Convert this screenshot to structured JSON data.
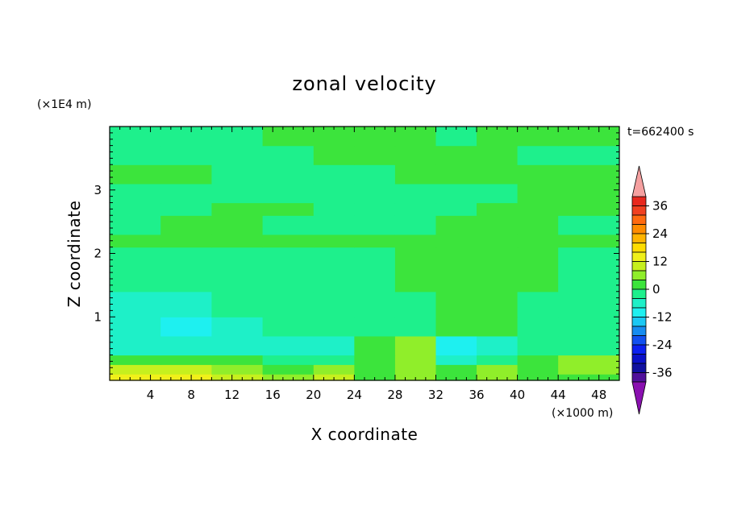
{
  "chart_data": {
    "type": "heatmap",
    "title": "zonal velocity",
    "xlabel": "X coordinate",
    "ylabel": "Z coordinate",
    "x_unit": "(×1000 m)",
    "y_unit": "(×1E4 m)",
    "time_label": "t=662400 s",
    "xlim": [
      0,
      50
    ],
    "ylim": [
      0,
      4
    ],
    "x_ticks": [
      4,
      8,
      12,
      16,
      20,
      24,
      28,
      32,
      36,
      40,
      44,
      48
    ],
    "y_ticks": [
      1,
      2,
      3
    ],
    "colorbar": {
      "ticks": [
        36,
        24,
        12,
        0,
        -12,
        -24,
        -36
      ],
      "levels": [
        {
          "from": 36,
          "to": 40,
          "color": "#e8281e"
        },
        {
          "from": 32,
          "to": 36,
          "color": "#f04020"
        },
        {
          "from": 28,
          "to": 32,
          "color": "#ff6a10"
        },
        {
          "from": 24,
          "to": 28,
          "color": "#ff8c00"
        },
        {
          "from": 20,
          "to": 24,
          "color": "#ffb400"
        },
        {
          "from": 16,
          "to": 20,
          "color": "#ffdc00"
        },
        {
          "from": 12,
          "to": 16,
          "color": "#f0f01a"
        },
        {
          "from": 8,
          "to": 12,
          "color": "#c6f01e"
        },
        {
          "from": 4,
          "to": 8,
          "color": "#90ee2a"
        },
        {
          "from": 0,
          "to": 4,
          "color": "#3ce43c"
        },
        {
          "from": -4,
          "to": 0,
          "color": "#1ef08c"
        },
        {
          "from": -8,
          "to": -4,
          "color": "#1ef0c8"
        },
        {
          "from": -12,
          "to": -8,
          "color": "#1ef0f0"
        },
        {
          "from": -16,
          "to": -12,
          "color": "#1ac8f4"
        },
        {
          "from": -20,
          "to": -16,
          "color": "#168cf0"
        },
        {
          "from": -24,
          "to": -20,
          "color": "#1250f0"
        },
        {
          "from": -28,
          "to": -24,
          "color": "#0c20f0"
        },
        {
          "from": -32,
          "to": -28,
          "color": "#0a10c8"
        },
        {
          "from": -36,
          "to": -32,
          "color": "#1010a0"
        },
        {
          "from": -40,
          "to": -36,
          "color": "#50109a"
        }
      ],
      "over_color": "#f5a0a0",
      "under_color": "#8a10b0"
    },
    "field_rows": [
      {
        "z": [
          0.0,
          0.1
        ],
        "x": [
          0,
          5,
          10,
          15,
          20,
          24,
          28,
          32,
          36,
          40,
          44,
          50
        ],
        "v": [
          13,
          14,
          10,
          6,
          9,
          2,
          5,
          3,
          7,
          2,
          3,
          4
        ]
      },
      {
        "z": [
          0.1,
          0.25
        ],
        "x": [
          0,
          5,
          10,
          15,
          20,
          24,
          28,
          32,
          36,
          40,
          44,
          50
        ],
        "v": [
          8,
          9,
          5,
          2,
          6,
          1,
          7,
          1,
          5,
          2,
          4,
          3
        ]
      },
      {
        "z": [
          0.25,
          0.4
        ],
        "x": [
          0,
          5,
          10,
          15,
          20,
          24,
          28,
          32,
          36,
          40,
          44,
          50
        ],
        "v": [
          2,
          1,
          0,
          -2,
          -1,
          3,
          6,
          -6,
          -2,
          1,
          5,
          1
        ]
      },
      {
        "z": [
          0.4,
          0.7
        ],
        "x": [
          0,
          5,
          10,
          15,
          20,
          24,
          28,
          32,
          36,
          40,
          44,
          50
        ],
        "v": [
          -6,
          -8,
          -5,
          -7,
          -5,
          2,
          5,
          -9,
          -5,
          -2,
          -1,
          -5
        ]
      },
      {
        "z": [
          0.7,
          1.0
        ],
        "x": [
          0,
          5,
          10,
          15,
          20,
          24,
          28,
          32,
          36,
          40,
          44,
          50
        ],
        "v": [
          -7,
          -10,
          -8,
          -3,
          -2,
          -1,
          -1,
          1,
          2,
          -2,
          -4,
          -7
        ]
      },
      {
        "z": [
          1.0,
          1.4
        ],
        "x": [
          0,
          5,
          10,
          15,
          20,
          24,
          28,
          32,
          36,
          40,
          44,
          50
        ],
        "v": [
          -5,
          -6,
          -4,
          -2,
          -1,
          -1,
          -2,
          2,
          2,
          -1,
          -2,
          -3
        ]
      },
      {
        "z": [
          1.4,
          2.1
        ],
        "x": [
          0,
          5,
          10,
          15,
          20,
          24,
          28,
          32,
          36,
          40,
          44,
          50
        ],
        "v": [
          -2,
          -2,
          -2,
          -2,
          -2,
          -2,
          1,
          2,
          2,
          1,
          -1,
          -1
        ]
      },
      {
        "z": [
          2.1,
          2.3
        ],
        "x": [
          0,
          5,
          10,
          15,
          20,
          24,
          28,
          32,
          36,
          40,
          44,
          50
        ],
        "v": [
          2,
          2,
          2,
          2,
          2,
          2,
          2,
          2,
          2,
          2,
          2,
          2
        ]
      },
      {
        "z": [
          2.3,
          2.6
        ],
        "x": [
          0,
          5,
          10,
          15,
          20,
          24,
          28,
          32,
          36,
          40,
          44,
          50
        ],
        "v": [
          -1,
          1,
          1,
          -1,
          -1,
          -1,
          -1,
          1,
          1,
          1,
          -1,
          -1
        ]
      },
      {
        "z": [
          2.6,
          2.8
        ],
        "x": [
          0,
          5,
          10,
          15,
          20,
          24,
          28,
          32,
          36,
          40,
          44,
          50
        ],
        "v": [
          -1,
          -1,
          1,
          1,
          -1,
          -1,
          -1,
          -1,
          1,
          1,
          1,
          -1
        ]
      },
      {
        "z": [
          2.8,
          3.1
        ],
        "x": [
          0,
          5,
          10,
          15,
          20,
          24,
          28,
          32,
          36,
          40,
          44,
          50
        ],
        "v": [
          -1,
          -1,
          -1,
          -1,
          -1,
          -1,
          -1,
          -1,
          -1,
          2,
          2,
          2
        ]
      },
      {
        "z": [
          3.1,
          3.4
        ],
        "x": [
          0,
          5,
          10,
          15,
          20,
          24,
          28,
          32,
          36,
          40,
          44,
          50
        ],
        "v": [
          2,
          2,
          -1,
          -1,
          -1,
          -1,
          2,
          2,
          2,
          2,
          2,
          2
        ]
      },
      {
        "z": [
          3.4,
          3.7
        ],
        "x": [
          0,
          5,
          10,
          15,
          20,
          24,
          28,
          32,
          36,
          40,
          44,
          50
        ],
        "v": [
          -1,
          -1,
          -1,
          -1,
          2,
          2,
          2,
          2,
          2,
          -1,
          -1,
          -1
        ]
      },
      {
        "z": [
          3.7,
          4.0
        ],
        "x": [
          0,
          5,
          10,
          15,
          20,
          24,
          28,
          32,
          36,
          40,
          44,
          50
        ],
        "v": [
          -1,
          -1,
          -1,
          2,
          2,
          2,
          2,
          -1,
          2,
          2,
          2,
          2
        ]
      }
    ]
  }
}
